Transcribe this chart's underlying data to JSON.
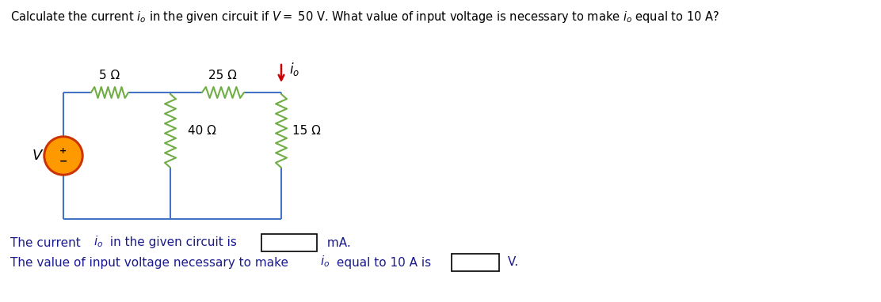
{
  "title": "Calculate the current $i_o$ in the given circuit if $V=$ 50 V. What value of input voltage is necessary to make $i_o$ equal to 10 A?",
  "wire_color": "#4472C4",
  "resistor_color": "#70AD47",
  "source_fill": "#FF9900",
  "source_border": "#CC3300",
  "arrow_color": "#CC0000",
  "text_color": "#000000",
  "bg_color": "#FFFFFF",
  "label_5ohm": "5 Ω",
  "label_25ohm": "25 Ω",
  "label_40ohm": "40 Ω",
  "label_15ohm": "15 Ω"
}
